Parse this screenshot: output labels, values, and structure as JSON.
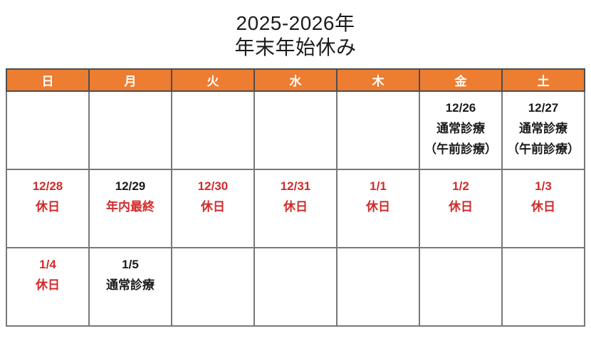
{
  "title": {
    "line1": "2025-2026年",
    "line2": "年末年始休み"
  },
  "colors": {
    "header_bg": "#ED7D31",
    "header_text": "#FFFFFF",
    "holiday_red": "#D22B2B",
    "normal_black": "#1A1A1A",
    "grid_border": "#787878"
  },
  "calendar": {
    "weekdays": [
      "日",
      "月",
      "火",
      "水",
      "木",
      "金",
      "土"
    ],
    "rows": [
      [
        [],
        [],
        [],
        [],
        [],
        [
          {
            "t": "12/26",
            "c": "black"
          },
          {
            "t": "通常診療",
            "c": "black"
          },
          {
            "t": "（午前診療）",
            "c": "black"
          }
        ],
        [
          {
            "t": "12/27",
            "c": "black"
          },
          {
            "t": "通常診療",
            "c": "black"
          },
          {
            "t": "（午前診療）",
            "c": "black"
          }
        ]
      ],
      [
        [
          {
            "t": "12/28",
            "c": "red"
          },
          {
            "t": "休日",
            "c": "red"
          }
        ],
        [
          {
            "t": "12/29",
            "c": "black"
          },
          {
            "t": "年内最終",
            "c": "red"
          }
        ],
        [
          {
            "t": "12/30",
            "c": "red"
          },
          {
            "t": "休日",
            "c": "red"
          }
        ],
        [
          {
            "t": "12/31",
            "c": "red"
          },
          {
            "t": "休日",
            "c": "red"
          }
        ],
        [
          {
            "t": "1/1",
            "c": "red"
          },
          {
            "t": "休日",
            "c": "red"
          }
        ],
        [
          {
            "t": "1/2",
            "c": "red"
          },
          {
            "t": "休日",
            "c": "red"
          }
        ],
        [
          {
            "t": "1/3",
            "c": "red"
          },
          {
            "t": "休日",
            "c": "red"
          }
        ]
      ],
      [
        [
          {
            "t": "1/4",
            "c": "red"
          },
          {
            "t": "休日",
            "c": "red"
          }
        ],
        [
          {
            "t": "1/5",
            "c": "black"
          },
          {
            "t": "通常診療",
            "c": "black"
          }
        ],
        [],
        [],
        [],
        [],
        []
      ]
    ]
  }
}
